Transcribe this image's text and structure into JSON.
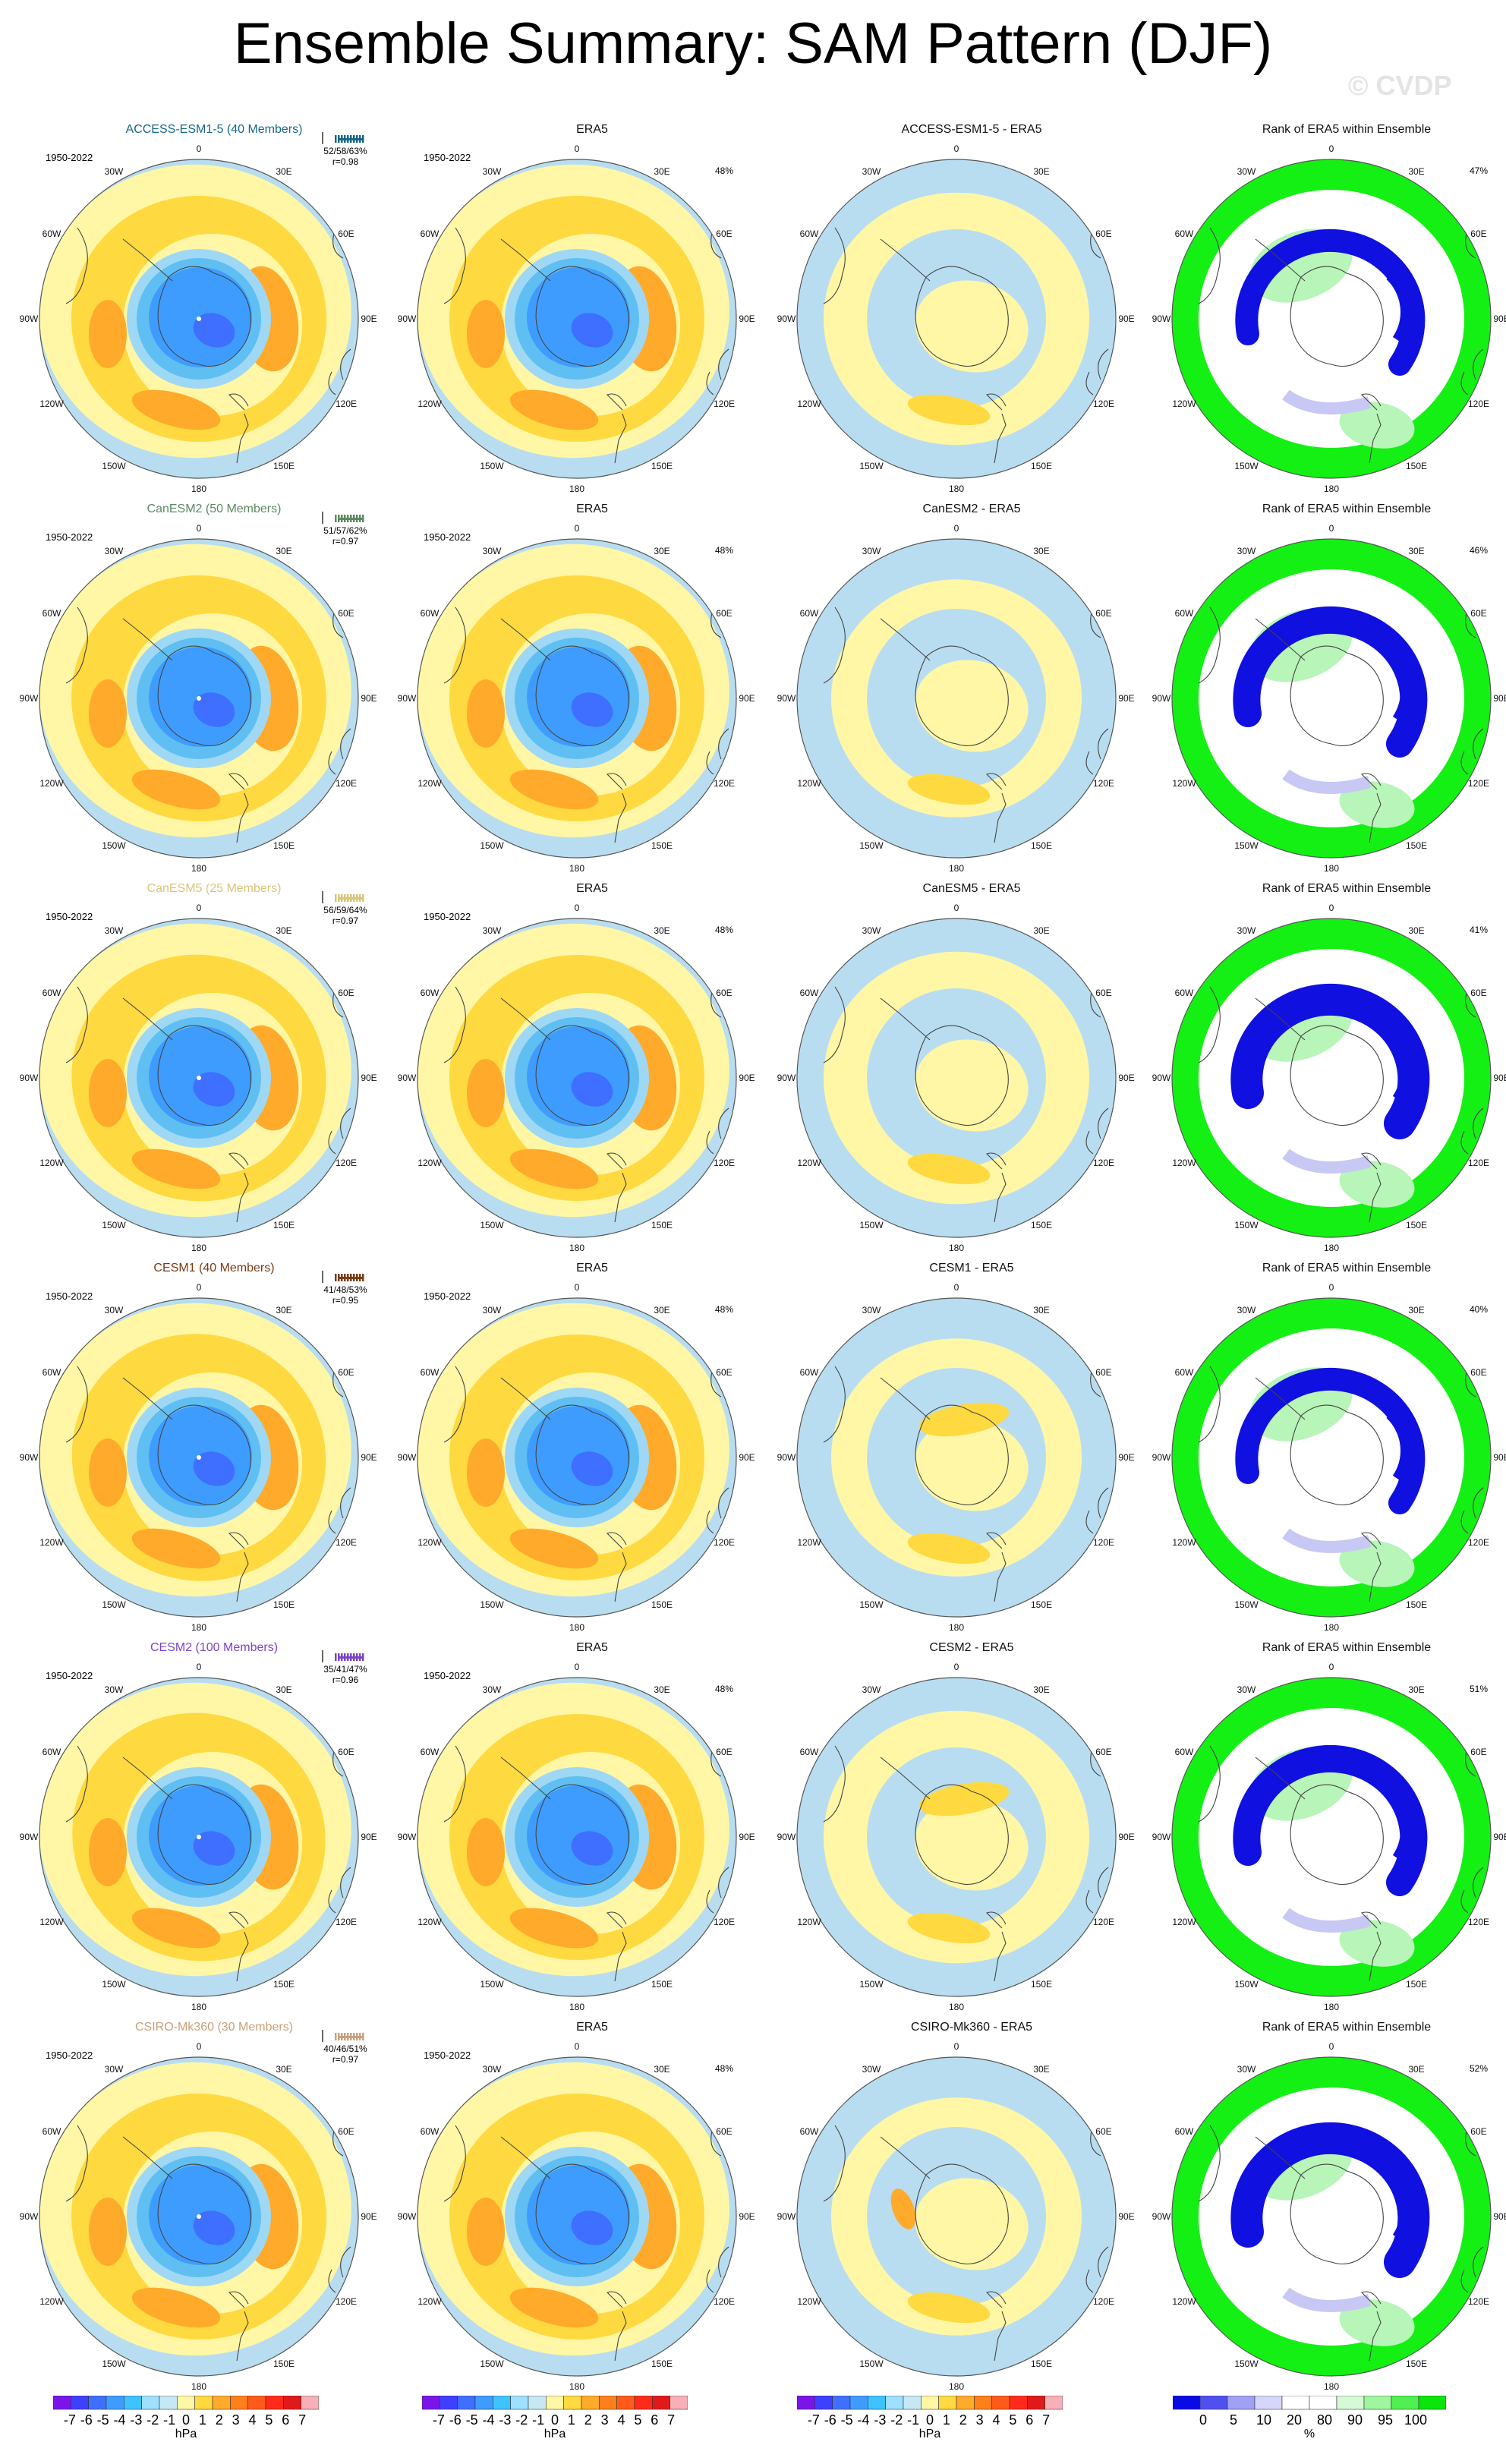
{
  "title": "Ensemble Summary: SAM Pattern (DJF)",
  "watermark": "© CVDP",
  "years": "1950-2022",
  "rank_title": "Rank of ERA5 within Ensemble",
  "obs_title": "ERA5",
  "obs_pct": "48%",
  "lon_labels": [
    "0",
    "30E",
    "60E",
    "90E",
    "120E",
    "150E",
    "180",
    "150W",
    "120W",
    "90W",
    "60W",
    "30W"
  ],
  "rows": [
    {
      "model": "ACCESS-ESM1-5 (40 Members)",
      "model_color": "#17678a",
      "short": "ACCESS-ESM1-5",
      "stats": "52/58/63%",
      "r": "r=0.98",
      "rank_pct": "47%",
      "var": 0
    },
    {
      "model": "CanESM2 (50 Members)",
      "model_color": "#5b8a62",
      "short": "CanESM2",
      "stats": "51/57/62%",
      "r": "r=0.97",
      "rank_pct": "46%",
      "var": 1
    },
    {
      "model": "CanESM5 (25 Members)",
      "model_color": "#d9c57a",
      "short": "CanESM5",
      "stats": "56/59/64%",
      "r": "r=0.97",
      "rank_pct": "41%",
      "var": 2
    },
    {
      "model": "CESM1 (40 Members)",
      "model_color": "#7a3b14",
      "short": "CESM1",
      "stats": "41/48/53%",
      "r": "r=0.95",
      "rank_pct": "40%",
      "var": 3
    },
    {
      "model": "CESM2 (100 Members)",
      "model_color": "#7b44c8",
      "short": "CESM2",
      "stats": "35/41/47%",
      "r": "r=0.96",
      "rank_pct": "51%",
      "var": 4
    },
    {
      "model": "CSIRO-Mk360 (30 Members)",
      "model_color": "#c9a07b",
      "short": "CSIRO-Mk360",
      "stats": "40/46/51%",
      "r": "r=0.97",
      "rank_pct": "52%",
      "var": 5
    }
  ],
  "diff_suffix": " - ERA5",
  "colorbar_hpa": {
    "colors": [
      "#7a14e8",
      "#3f3fff",
      "#3f6fff",
      "#3f9cff",
      "#3fc3ff",
      "#9fdfff",
      "#c6e8f5",
      "#fff7a6",
      "#ffd940",
      "#ffaa2a",
      "#ff7f1a",
      "#ff5a1a",
      "#ff2a1a",
      "#e01a1a",
      "#f7b0b8"
    ],
    "ticks": [
      "-7",
      "-6",
      "-5",
      "-4",
      "-3",
      "-2",
      "-1",
      "0",
      "1",
      "2",
      "3",
      "4",
      "5",
      "6",
      "7"
    ],
    "unit": "hPa"
  },
  "colorbar_rank": {
    "colors": [
      "#0a0ae6",
      "#5050f0",
      "#a0a0f5",
      "#d6d6fa",
      "#ffffff",
      "#ffffff",
      "#d6fad6",
      "#a0f5a0",
      "#50f050",
      "#0ae60a"
    ],
    "ticks": [
      "0",
      "5",
      "10",
      "20",
      "80",
      "90",
      "95",
      "100"
    ],
    "unit": "%"
  },
  "palette": {
    "ocean": "#b9ddf0",
    "light_yellow": "#fff7a6",
    "mid_orange": "#ffd940",
    "orange": "#ffaa2a",
    "blue1": "#9fd8f5",
    "blue2": "#5fbff2",
    "blue3": "#3f9cff",
    "blue4": "#3f6fff",
    "rank_blue": "#1010e0",
    "rank_lblue": "#c8c8f5",
    "rank_green": "#14f014",
    "rank_lgreen": "#b8f5b8"
  }
}
